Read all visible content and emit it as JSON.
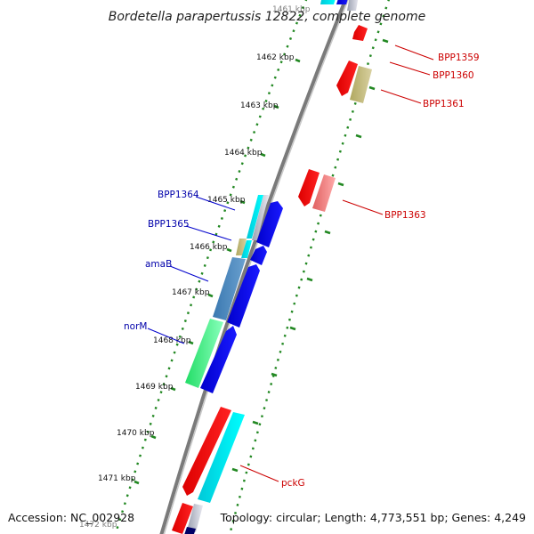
{
  "title": "Bordetella parapertussis 12822, complete genome",
  "footer": {
    "accession": "Accession: NC_002928",
    "topology": "Topology: circular; Length: 4,773,551 bp; Genes: 4,249"
  },
  "ticks": [
    "1461 kbp",
    "1462 kbp",
    "1463 kbp",
    "1464 kbp",
    "1465 kbp",
    "1466 kbp",
    "1467 kbp",
    "1468 kbp",
    "1469 kbp",
    "1470 kbp",
    "1471 kbp",
    "1472 kbp"
  ],
  "genes": {
    "left": [
      "BPP1364",
      "BPP1365",
      "amaB",
      "norM"
    ],
    "right": [
      "BPP1359",
      "BPP1360",
      "BPP1361",
      "BPP1363",
      "pckG"
    ]
  },
  "colors": {
    "forward_cds": "#0000ff",
    "reverse_cds": "#ff0000",
    "tick": "#228822",
    "left_label": "#0000aa",
    "right_label": "#cc0000"
  }
}
